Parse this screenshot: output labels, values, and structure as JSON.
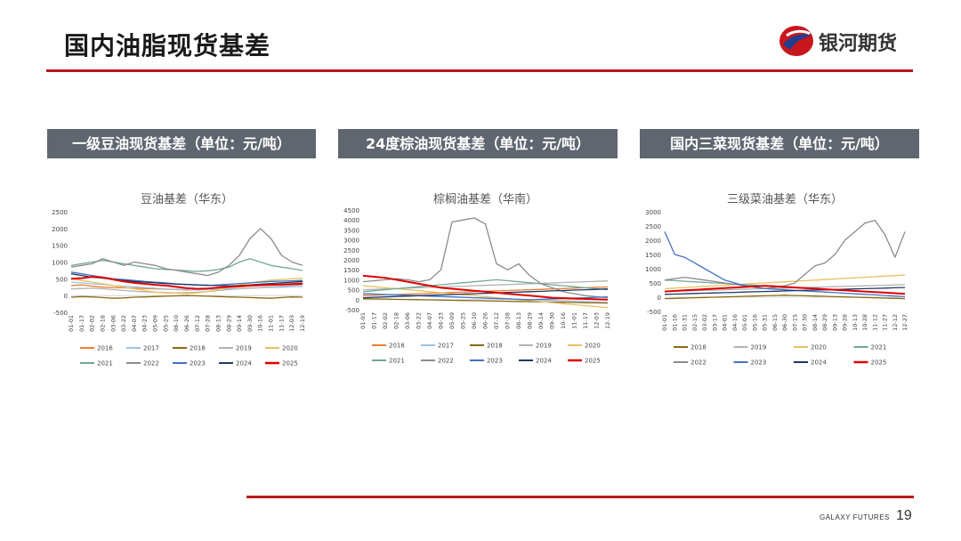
{
  "header": {
    "title": "国内油脂现货基差",
    "logo_text": "银河期货"
  },
  "footer": {
    "brand": "GALAXY FUTURES",
    "page_number": "19"
  },
  "sections": [
    {
      "label": "一级豆油现货基差（单位：元/吨）"
    },
    {
      "label": "24度棕油现货基差（单位：元/吨）"
    },
    {
      "label": "国内三菜现货基差（单位：元/吨）"
    }
  ],
  "chart_data": [
    {
      "type": "line",
      "title": "豆油基差（华东）",
      "ylim": [
        -500,
        2500
      ],
      "yticks": [
        -500,
        0,
        500,
        1000,
        1500,
        2000,
        2500
      ],
      "x": [
        "01-01",
        "01-17",
        "02-02",
        "02-18",
        "03-06",
        "03-22",
        "04-07",
        "04-23",
        "05-09",
        "05-25",
        "06-10",
        "06-26",
        "07-12",
        "07-28",
        "08-13",
        "08-29",
        "09-14",
        "09-30",
        "10-16",
        "11-01",
        "11-17",
        "12-03",
        "12-19"
      ],
      "series": [
        {
          "name": "2016",
          "color": "#ed7d31",
          "values": [
            300,
            320,
            280,
            250,
            240,
            230,
            220,
            210,
            200,
            190,
            180,
            170,
            180,
            200,
            220,
            240,
            260,
            280,
            300,
            320,
            340,
            360,
            380
          ]
        },
        {
          "name": "2017",
          "color": "#9dc3e6",
          "values": [
            400,
            380,
            350,
            330,
            300,
            280,
            260,
            240,
            220,
            200,
            190,
            180,
            170,
            180,
            190,
            200,
            210,
            220,
            230,
            240,
            250,
            260,
            270
          ]
        },
        {
          "name": "2018",
          "color": "#8b6914",
          "values": [
            -50,
            -30,
            -40,
            -60,
            -80,
            -70,
            -50,
            -40,
            -30,
            -20,
            -10,
            0,
            -10,
            -20,
            -30,
            -40,
            -50,
            -60,
            -70,
            -80,
            -60,
            -40,
            -50
          ]
        },
        {
          "name": "2019",
          "color": "#b3b3b3",
          "values": [
            200,
            210,
            220,
            200,
            180,
            150,
            130,
            110,
            100,
            90,
            80,
            90,
            100,
            120,
            150,
            180,
            200,
            220,
            240,
            260,
            280,
            300,
            320
          ]
        },
        {
          "name": "2020",
          "color": "#e7c162",
          "values": [
            500,
            450,
            400,
            350,
            300,
            250,
            200,
            150,
            100,
            80,
            70,
            60,
            80,
            120,
            180,
            250,
            320,
            380,
            420,
            460,
            480,
            500,
            520
          ]
        },
        {
          "name": "2021",
          "color": "#70a89a",
          "values": [
            900,
            950,
            1000,
            1050,
            1000,
            950,
            900,
            850,
            800,
            780,
            760,
            740,
            720,
            740,
            780,
            850,
            1000,
            1100,
            1000,
            900,
            850,
            800,
            750
          ]
        },
        {
          "name": "2022",
          "color": "#8c8c8c",
          "values": [
            850,
            900,
            950,
            1100,
            1000,
            900,
            1000,
            950,
            900,
            800,
            750,
            700,
            650,
            600,
            700,
            900,
            1200,
            1700,
            2000,
            1700,
            1200,
            1000,
            900
          ]
        },
        {
          "name": "2023",
          "color": "#4472c4",
          "values": [
            700,
            650,
            600,
            550,
            500,
            480,
            450,
            420,
            400,
            380,
            350,
            330,
            310,
            300,
            320,
            340,
            360,
            380,
            400,
            420,
            430,
            440,
            450
          ]
        },
        {
          "name": "2024",
          "color": "#1f3864",
          "values": [
            650,
            600,
            550,
            520,
            480,
            450,
            420,
            400,
            380,
            360,
            340,
            330,
            320,
            310,
            300,
            290,
            300,
            320,
            340,
            360,
            380,
            400,
            420
          ]
        },
        {
          "name": "2025",
          "color": "#e00000",
          "values": [
            500,
            520,
            560,
            540,
            480,
            420,
            380,
            350,
            320,
            300,
            260,
            220,
            200,
            210,
            240,
            260,
            280,
            300,
            310,
            320,
            330,
            340,
            350
          ]
        }
      ]
    },
    {
      "type": "line",
      "title": "棕榈油基差（华南）",
      "ylim": [
        -500,
        4500
      ],
      "yticks": [
        -500,
        0,
        500,
        1000,
        1500,
        2000,
        2500,
        3000,
        3500,
        4000,
        4500
      ],
      "x": [
        "01-01",
        "01-17",
        "02-02",
        "02-18",
        "03-06",
        "03-22",
        "04-07",
        "04-23",
        "05-09",
        "05-25",
        "06-10",
        "06-26",
        "07-12",
        "07-28",
        "08-13",
        "08-29",
        "09-14",
        "09-30",
        "10-16",
        "11-01",
        "11-17",
        "12-03",
        "12-19"
      ],
      "series": [
        {
          "name": "2016",
          "color": "#ed7d31",
          "values": [
            200,
            220,
            240,
            260,
            280,
            300,
            320,
            340,
            360,
            380,
            400,
            420,
            440,
            460,
            480,
            500,
            520,
            540,
            560,
            580,
            600,
            620,
            640
          ]
        },
        {
          "name": "2017",
          "color": "#9dc3e6",
          "values": [
            300,
            280,
            260,
            240,
            220,
            200,
            180,
            160,
            140,
            120,
            100,
            80,
            60,
            40,
            20,
            0,
            -20,
            -40,
            -60,
            -80,
            -100,
            -120,
            -140
          ]
        },
        {
          "name": "2018",
          "color": "#8b6914",
          "values": [
            50,
            40,
            30,
            20,
            10,
            0,
            -10,
            -20,
            -30,
            -40,
            -50,
            -60,
            -70,
            -80,
            -90,
            -100,
            -110,
            -120,
            -130,
            -140,
            -150,
            -160,
            -170
          ]
        },
        {
          "name": "2019",
          "color": "#b3b3b3",
          "values": [
            500,
            520,
            540,
            560,
            580,
            600,
            620,
            640,
            660,
            680,
            700,
            720,
            740,
            760,
            780,
            800,
            820,
            840,
            860,
            880,
            900,
            920,
            940
          ]
        },
        {
          "name": "2020",
          "color": "#e7c162",
          "values": [
            700,
            650,
            600,
            550,
            500,
            450,
            400,
            350,
            300,
            250,
            200,
            150,
            100,
            50,
            0,
            -50,
            -100,
            -150,
            -200,
            -250,
            -300,
            -350,
            -400
          ]
        },
        {
          "name": "2021",
          "color": "#70a89a",
          "values": [
            400,
            450,
            500,
            550,
            600,
            650,
            700,
            750,
            800,
            850,
            900,
            950,
            1000,
            950,
            900,
            850,
            800,
            750,
            700,
            650,
            600,
            550,
            500
          ]
        },
        {
          "name": "2022",
          "color": "#8c8c8c",
          "values": [
            900,
            950,
            1000,
            1050,
            1000,
            900,
            1000,
            1500,
            3900,
            4000,
            4100,
            3800,
            1800,
            1500,
            1800,
            1200,
            800,
            600,
            400,
            300,
            200,
            150,
            100
          ]
        },
        {
          "name": "2023",
          "color": "#4472c4",
          "values": [
            300,
            280,
            260,
            240,
            220,
            200,
            180,
            160,
            140,
            120,
            100,
            80,
            60,
            40,
            20,
            0,
            20,
            40,
            60,
            80,
            100,
            120,
            140
          ]
        },
        {
          "name": "2024",
          "color": "#1f3864",
          "values": [
            100,
            120,
            140,
            160,
            180,
            200,
            220,
            240,
            260,
            280,
            300,
            320,
            340,
            360,
            380,
            400,
            420,
            440,
            460,
            480,
            500,
            520,
            540
          ]
        },
        {
          "name": "2025",
          "color": "#e00000",
          "values": [
            1200,
            1150,
            1100,
            1000,
            900,
            800,
            700,
            600,
            550,
            500,
            450,
            400,
            350,
            300,
            250,
            200,
            150,
            100,
            80,
            60,
            40,
            20,
            0
          ]
        }
      ]
    },
    {
      "type": "line",
      "title": "三级菜油基差（华东）",
      "ylim": [
        -500,
        3000
      ],
      "yticks": [
        -500,
        0,
        500,
        1000,
        1500,
        2000,
        2500,
        3000
      ],
      "x": [
        "01-01",
        "01-16",
        "01-31",
        "02-15",
        "03-02",
        "03-17",
        "04-01",
        "04-16",
        "05-01",
        "05-16",
        "05-31",
        "06-15",
        "06-30",
        "07-15",
        "07-30",
        "08-14",
        "08-29",
        "09-13",
        "09-28",
        "10-13",
        "10-28",
        "11-12",
        "11-27",
        "12-12",
        "12-27"
      ],
      "series": [
        {
          "name": "2018",
          "color": "#8b6914",
          "values": [
            -50,
            -40,
            -30,
            -20,
            -10,
            0,
            10,
            20,
            30,
            40,
            50,
            60,
            70,
            60,
            50,
            40,
            30,
            20,
            10,
            0,
            -10,
            -20,
            -30,
            -40,
            -50
          ]
        },
        {
          "name": "2019",
          "color": "#b3b3b3",
          "values": [
            200,
            210,
            220,
            230,
            240,
            250,
            260,
            270,
            280,
            290,
            300,
            310,
            320,
            330,
            340,
            350,
            360,
            370,
            380,
            390,
            400,
            410,
            420,
            430,
            440
          ]
        },
        {
          "name": "2020",
          "color": "#e7c162",
          "values": [
            300,
            320,
            340,
            360,
            380,
            400,
            420,
            440,
            460,
            480,
            500,
            520,
            540,
            560,
            580,
            600,
            620,
            640,
            660,
            680,
            700,
            720,
            740,
            760,
            780
          ]
        },
        {
          "name": "2021",
          "color": "#70a89a",
          "values": [
            600,
            580,
            560,
            540,
            520,
            500,
            480,
            460,
            440,
            420,
            400,
            380,
            360,
            340,
            320,
            300,
            280,
            260,
            240,
            220,
            200,
            180,
            160,
            140,
            120
          ]
        },
        {
          "name": "2022",
          "color": "#8c8c8c",
          "values": [
            600,
            650,
            700,
            650,
            600,
            550,
            500,
            450,
            400,
            350,
            300,
            350,
            400,
            500,
            800,
            1100,
            1200,
            1500,
            2000,
            2300,
            2600,
            2700,
            2200,
            1400,
            2300
          ]
        },
        {
          "name": "2023",
          "color": "#4472c4",
          "values": [
            2300,
            1500,
            1400,
            1200,
            1000,
            800,
            600,
            500,
            400,
            350,
            300,
            280,
            260,
            240,
            220,
            200,
            180,
            160,
            140,
            120,
            100,
            80,
            60,
            40,
            20
          ]
        },
        {
          "name": "2024",
          "color": "#1f3864",
          "values": [
            100,
            110,
            120,
            130,
            140,
            150,
            160,
            170,
            180,
            190,
            200,
            210,
            220,
            230,
            240,
            250,
            260,
            270,
            280,
            290,
            300,
            310,
            320,
            330,
            340
          ]
        },
        {
          "name": "2025",
          "color": "#e00000",
          "values": [
            200,
            220,
            240,
            260,
            280,
            300,
            320,
            340,
            360,
            380,
            400,
            380,
            360,
            340,
            320,
            300,
            280,
            260,
            240,
            220,
            200,
            180,
            160,
            140,
            120
          ]
        }
      ]
    }
  ]
}
